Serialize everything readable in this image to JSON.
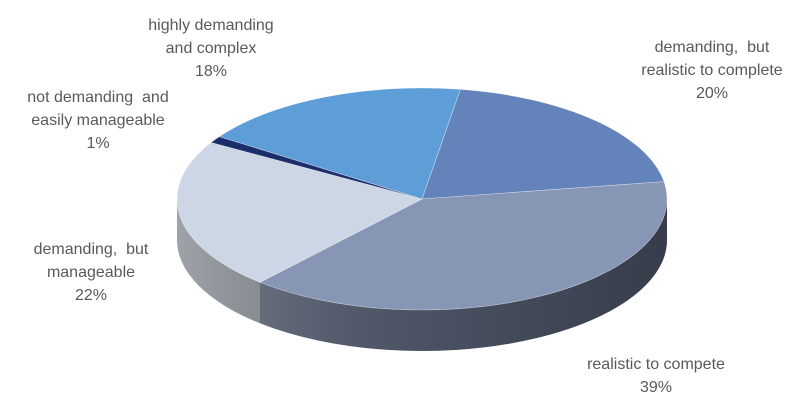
{
  "chart_data": {
    "type": "pie",
    "style": "3d",
    "legend": "none",
    "slices": [
      {
        "label_lines": [
          "demanding,  but",
          "realistic to complete"
        ],
        "percent_label": "20%",
        "value": 20,
        "color": "#6483bb"
      },
      {
        "label_lines": [
          "realistic to compete"
        ],
        "percent_label": "39%",
        "value": 39,
        "color": "#8896b6"
      },
      {
        "label_lines": [
          "demanding,  but",
          "manageable"
        ],
        "percent_label": "22%",
        "value": 22,
        "color": "#cdd6e4"
      },
      {
        "label_lines": [
          "not demanding  and",
          "easily manageable"
        ],
        "percent_label": "1%",
        "value": 1,
        "color": "#1b2d6b"
      },
      {
        "label_lines": [
          "highly demanding",
          "and complex"
        ],
        "percent_label": "18%",
        "value": 18,
        "color": "#5e9ed8"
      }
    ]
  }
}
